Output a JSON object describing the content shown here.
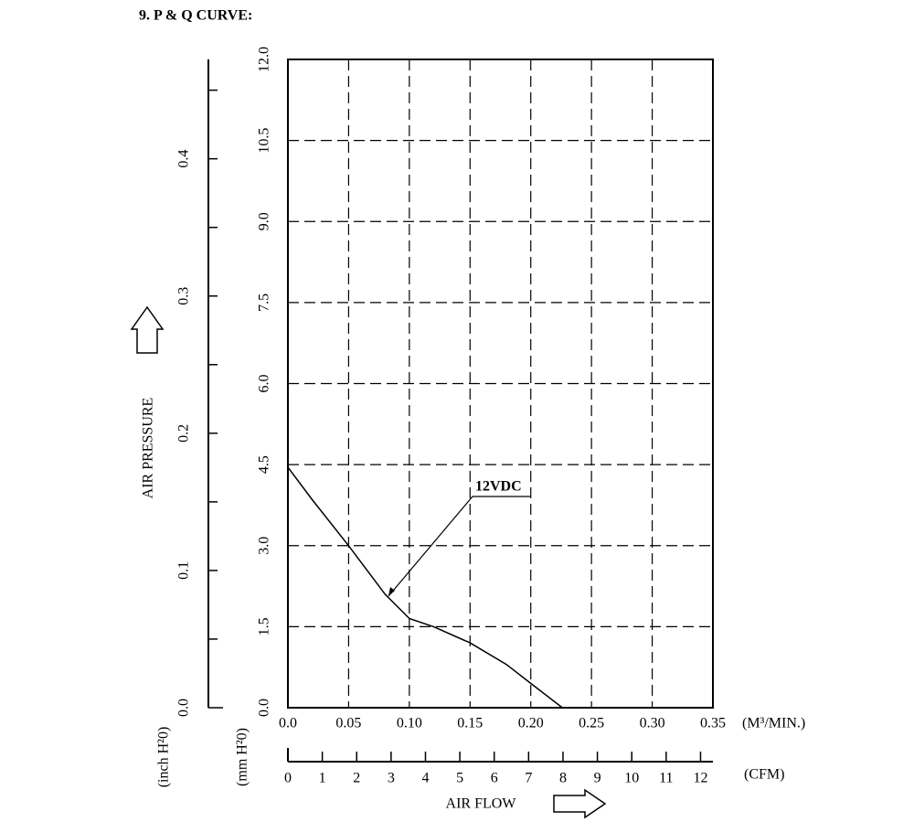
{
  "chart_data": {
    "type": "line",
    "title": "9. P & Q CURVE:",
    "x_label": "AIR FLOW",
    "x_unit": "(M³/MIN.)",
    "x2_unit": "(CFM)",
    "y_label": "AIR PRESSURE",
    "y_unit": "(mm H²0)",
    "y2_unit": "(inch H²0)",
    "series": [
      {
        "name": "12VDC",
        "color": "#000000",
        "x": [
          0,
          0.02,
          0.05,
          0.08,
          0.1,
          0.12,
          0.15,
          0.18,
          0.2,
          0.226
        ],
        "values": [
          4.45,
          3.85,
          3.0,
          2.1,
          1.65,
          1.5,
          1.2,
          0.8,
          0.45,
          0
        ]
      }
    ],
    "xlim": [
      0,
      0.35
    ],
    "xticks": [
      {
        "value": 0,
        "label": "0.0"
      },
      0.05,
      {
        "value": 0.1,
        "label": "0.10"
      },
      0.15,
      {
        "value": 0.2,
        "label": "0.20"
      },
      0.25,
      {
        "value": 0.3,
        "label": "0.30"
      },
      0.35
    ],
    "ylim": [
      0,
      12
    ],
    "yticks": [
      {
        "value": 0,
        "label": "0.0"
      },
      1.5,
      {
        "value": 3,
        "label": "3.0"
      },
      4.5,
      {
        "value": 6,
        "label": "6.0"
      },
      7.5,
      {
        "value": 9,
        "label": "9.0"
      },
      10.5,
      {
        "value": 12,
        "label": "12.0"
      }
    ],
    "x2lim": [
      0,
      12.36
    ],
    "x2ticks": [
      0,
      1,
      2,
      3,
      4,
      5,
      6,
      7,
      8,
      9,
      10,
      11,
      12
    ],
    "y2lim": [
      0,
      0.4724
    ],
    "y2ticks": [
      {
        "value": 0,
        "label": "0.0"
      },
      0.1,
      0.2,
      0.3,
      0.4
    ],
    "y2minorticks": [
      0.05,
      0.15,
      0.25,
      0.35,
      0.45
    ],
    "grid": true
  }
}
